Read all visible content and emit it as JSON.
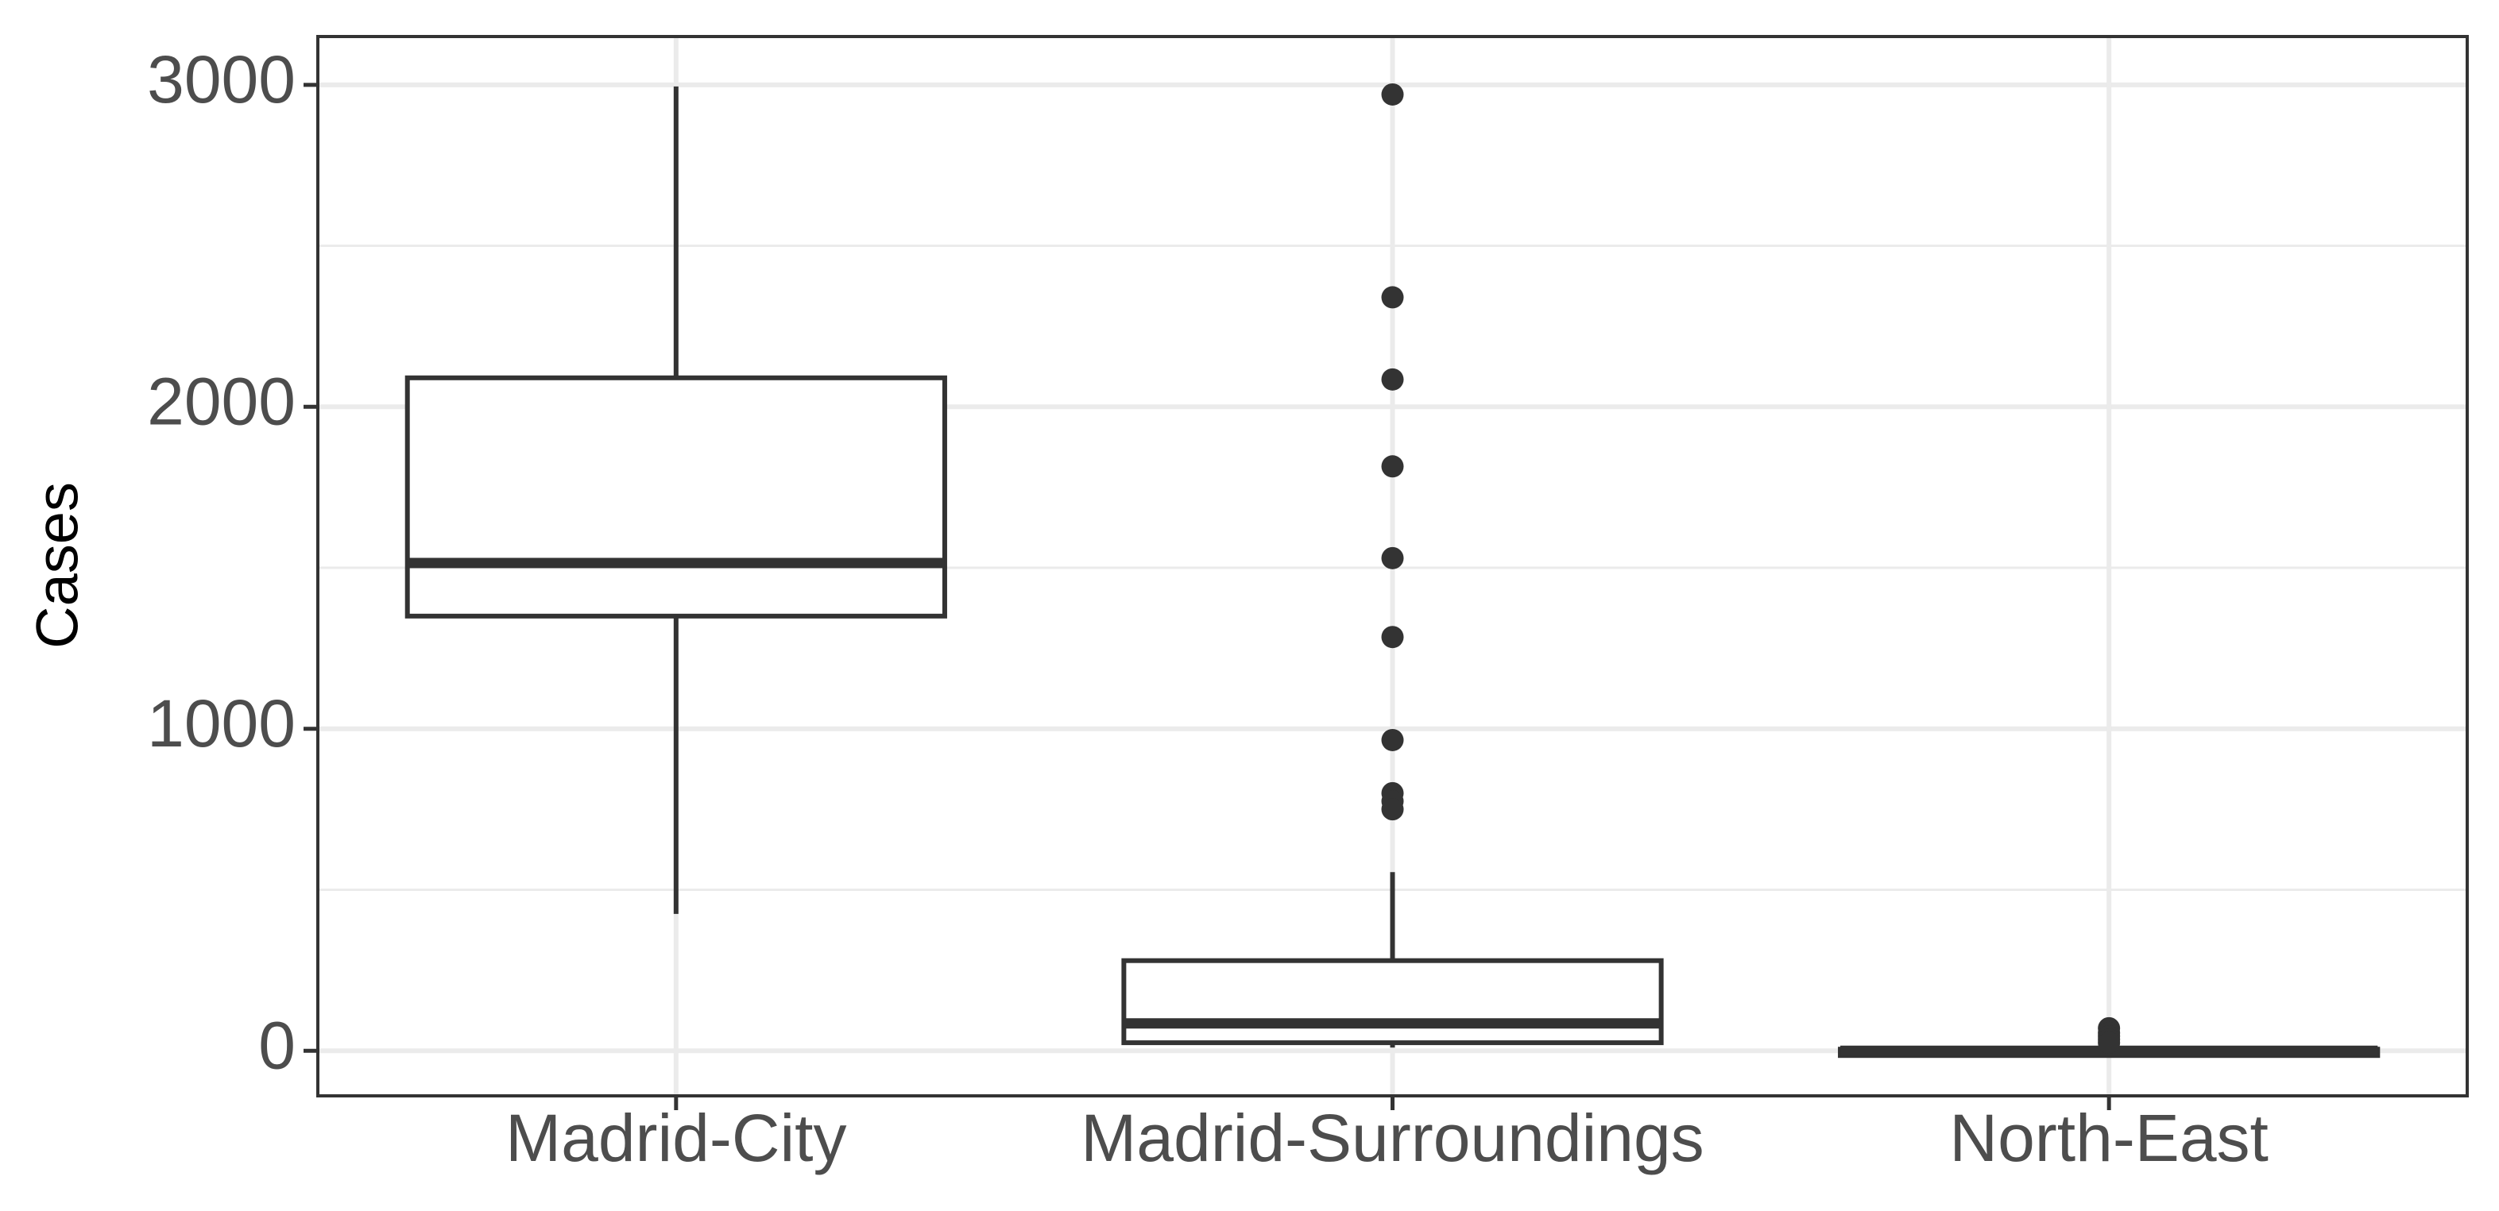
{
  "chart_data": {
    "type": "boxplot",
    "title": "",
    "xlabel": "",
    "ylabel": "Cases",
    "ylim": [
      -140,
      3150
    ],
    "y_ticks": [
      0,
      1000,
      2000,
      3000
    ],
    "y_minor_ticks": [
      500,
      1500,
      2500
    ],
    "grid": true,
    "legend": "none",
    "categories": [
      "Madrid-City",
      "Madrid-Surroundings",
      "North-East"
    ],
    "boxes": [
      {
        "category": "Madrid-City",
        "whisker_low": 425,
        "q1": 1350,
        "median": 1515,
        "q3": 2090,
        "whisker_high": 2995,
        "outliers": []
      },
      {
        "category": "Madrid-Surroundings",
        "whisker_low": 10,
        "q1": 25,
        "median": 85,
        "q3": 280,
        "whisker_high": 555,
        "outliers": [
          2970,
          2340,
          2085,
          1815,
          1530,
          1285,
          965,
          800,
          775,
          750
        ]
      },
      {
        "category": "North-East",
        "whisker_low": 0,
        "q1": 0,
        "median": 0,
        "q3": 5,
        "whisker_high": 10,
        "outliers": [
          70,
          55,
          45,
          35,
          25
        ]
      }
    ],
    "colors": {
      "box_stroke": "#333333",
      "box_fill": "#ffffff",
      "grid": "#ebebeb",
      "panel_border": "#333333",
      "tick_label": "#4d4d4d",
      "outlier": "#333333"
    }
  }
}
